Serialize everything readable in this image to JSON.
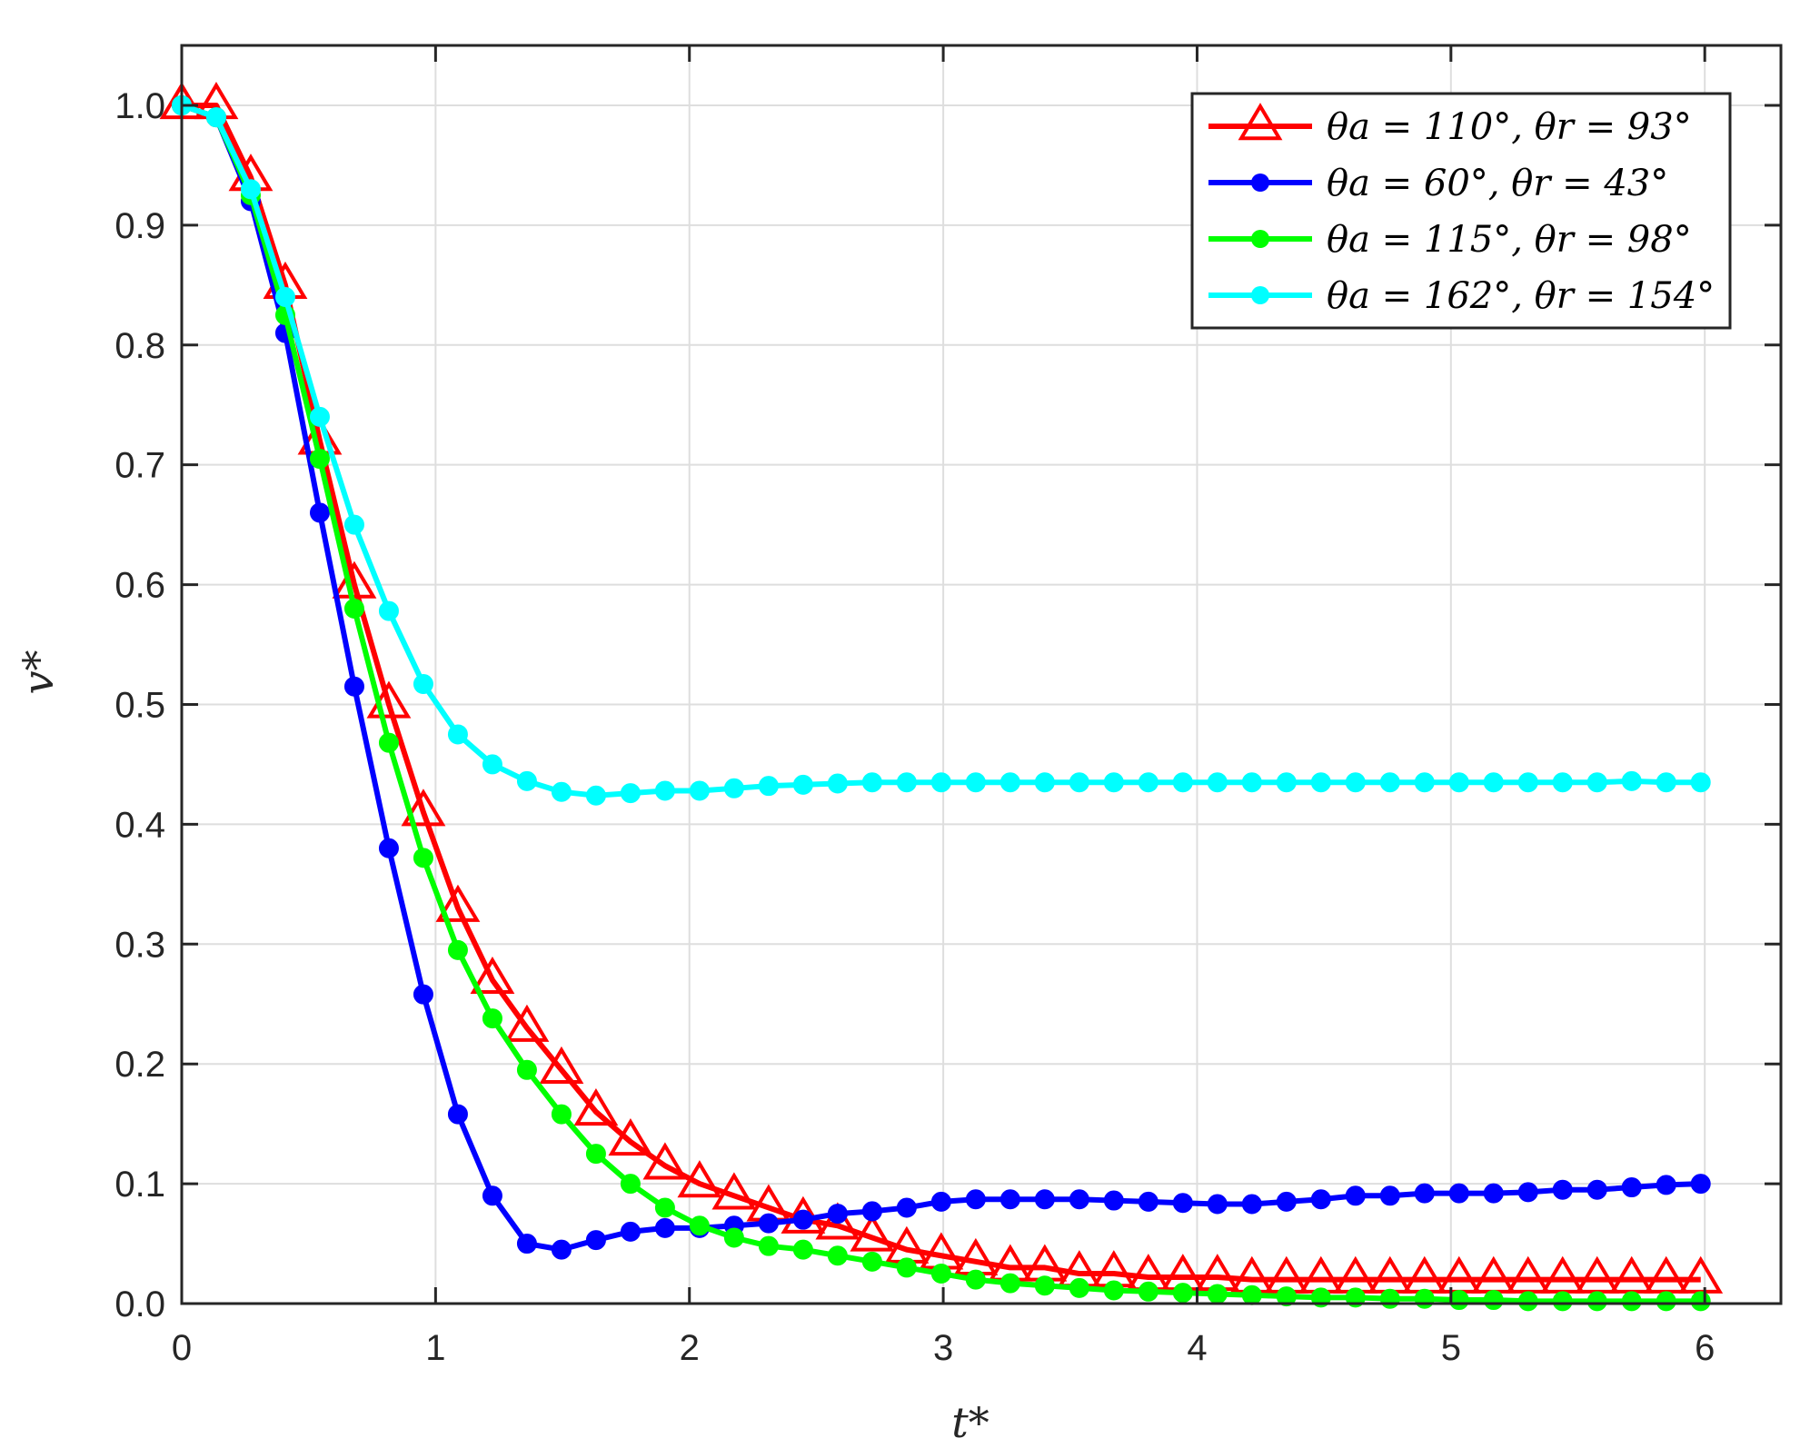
{
  "chart_data": {
    "type": "line",
    "title": "",
    "xlabel": "t*",
    "ylabel": "v*",
    "xlim": [
      0,
      6.3
    ],
    "ylim": [
      0,
      1.05
    ],
    "xticks": [
      0,
      1,
      2,
      3,
      4,
      5,
      6
    ],
    "xtick_labels": [
      "0",
      "1",
      "2",
      "3",
      "4",
      "5",
      "6"
    ],
    "yticks": [
      0,
      0.1,
      0.2,
      0.3,
      0.4,
      0.5,
      0.6,
      0.7,
      0.8,
      0.9,
      1.0
    ],
    "ytick_labels": [
      "0.0",
      "0.1",
      "0.2",
      "0.3",
      "0.4",
      "0.5",
      "0.6",
      "0.7",
      "0.8",
      "0.9",
      "1.0"
    ],
    "grid": true,
    "legend_position": "top-right",
    "x": [
      0,
      0.136,
      0.272,
      0.408,
      0.544,
      0.68,
      0.816,
      0.952,
      1.088,
      1.224,
      1.36,
      1.496,
      1.632,
      1.768,
      1.904,
      2.04,
      2.176,
      2.312,
      2.448,
      2.584,
      2.72,
      2.856,
      2.992,
      3.128,
      3.264,
      3.4,
      3.536,
      3.672,
      3.808,
      3.944,
      4.08,
      4.216,
      4.352,
      4.488,
      4.624,
      4.76,
      4.896,
      5.032,
      5.168,
      5.304,
      5.44,
      5.576,
      5.712,
      5.848,
      5.984
    ],
    "series": [
      {
        "name": "θa = 110°, θr = 93°",
        "color": "#ff0000",
        "marker": "triangle",
        "values": [
          1.0,
          1.0,
          0.94,
          0.85,
          0.72,
          0.6,
          0.5,
          0.41,
          0.33,
          0.27,
          0.23,
          0.195,
          0.16,
          0.135,
          0.115,
          0.1,
          0.09,
          0.08,
          0.07,
          0.065,
          0.055,
          0.045,
          0.04,
          0.035,
          0.03,
          0.03,
          0.025,
          0.025,
          0.022,
          0.022,
          0.022,
          0.02,
          0.02,
          0.02,
          0.02,
          0.02,
          0.02,
          0.02,
          0.02,
          0.02,
          0.02,
          0.02,
          0.02,
          0.02,
          0.02
        ]
      },
      {
        "name": "θa = 60°, θr = 43°",
        "color": "#0000ff",
        "marker": "circle",
        "values": [
          1.0,
          0.99,
          0.92,
          0.81,
          0.66,
          0.515,
          0.38,
          0.258,
          0.158,
          0.09,
          0.05,
          0.045,
          0.053,
          0.06,
          0.063,
          0.063,
          0.065,
          0.067,
          0.07,
          0.075,
          0.077,
          0.08,
          0.085,
          0.087,
          0.087,
          0.087,
          0.087,
          0.086,
          0.085,
          0.084,
          0.083,
          0.083,
          0.085,
          0.087,
          0.09,
          0.09,
          0.092,
          0.092,
          0.092,
          0.093,
          0.095,
          0.095,
          0.097,
          0.099,
          0.1
        ]
      },
      {
        "name": "θa = 115°, θr = 98°",
        "color": "#00ff00",
        "marker": "circle",
        "values": [
          1.0,
          0.99,
          0.925,
          0.825,
          0.705,
          0.58,
          0.468,
          0.372,
          0.295,
          0.238,
          0.195,
          0.158,
          0.125,
          0.1,
          0.08,
          0.065,
          0.055,
          0.048,
          0.045,
          0.04,
          0.035,
          0.03,
          0.025,
          0.02,
          0.017,
          0.015,
          0.013,
          0.011,
          0.01,
          0.009,
          0.008,
          0.007,
          0.006,
          0.005,
          0.005,
          0.004,
          0.004,
          0.003,
          0.003,
          0.002,
          0.002,
          0.002,
          0.002,
          0.002,
          0.002
        ]
      },
      {
        "name": "θa = 162°, θr = 154°",
        "color": "#00ffff",
        "marker": "circle",
        "values": [
          1.0,
          0.99,
          0.93,
          0.84,
          0.74,
          0.65,
          0.578,
          0.517,
          0.475,
          0.45,
          0.436,
          0.427,
          0.424,
          0.426,
          0.428,
          0.428,
          0.43,
          0.432,
          0.433,
          0.434,
          0.435,
          0.435,
          0.435,
          0.435,
          0.435,
          0.435,
          0.435,
          0.435,
          0.435,
          0.435,
          0.435,
          0.435,
          0.435,
          0.435,
          0.435,
          0.435,
          0.435,
          0.435,
          0.435,
          0.435,
          0.435,
          0.435,
          0.436,
          0.435,
          0.435
        ]
      }
    ]
  }
}
